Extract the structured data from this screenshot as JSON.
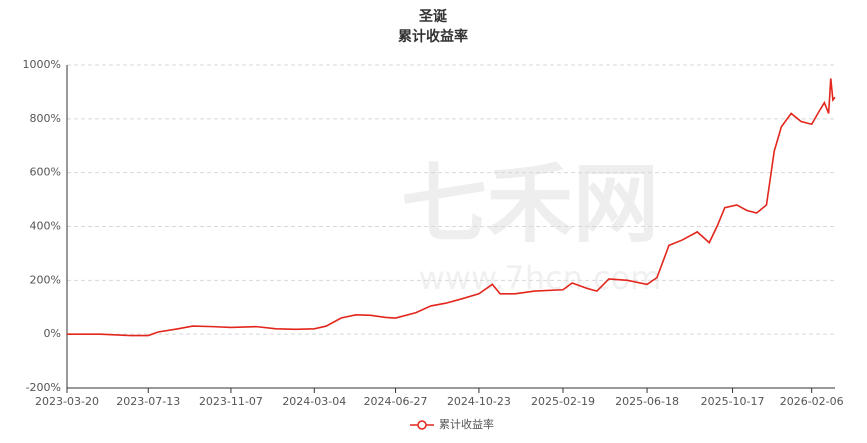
{
  "chart_data": {
    "type": "line",
    "title": "圣诞",
    "subtitle": "累计收益率",
    "watermark": {
      "text": "七禾网",
      "url": "www.7hcn.com"
    },
    "x": [
      "2023-03-20",
      "2023-05-06",
      "2023-06-17",
      "2023-07-13",
      "2023-07-27",
      "2023-08-24",
      "2023-09-14",
      "2023-10-12",
      "2023-11-07",
      "2023-12-13",
      "2024-01-10",
      "2024-02-07",
      "2024-03-04",
      "2024-03-21",
      "2024-04-11",
      "2024-05-02",
      "2024-05-23",
      "2024-06-13",
      "2024-06-27",
      "2024-07-26",
      "2024-08-16",
      "2024-09-06",
      "2024-09-27",
      "2024-10-23",
      "2024-11-11",
      "2024-11-22",
      "2024-12-13",
      "2025-01-10",
      "2025-02-19",
      "2025-03-04",
      "2025-03-25",
      "2025-04-08",
      "2025-04-25",
      "2025-05-21",
      "2025-06-18",
      "2025-07-02",
      "2025-07-19",
      "2025-08-07",
      "2025-08-28",
      "2025-09-14",
      "2025-09-25",
      "2025-10-06",
      "2025-10-23",
      "2025-11-06",
      "2025-11-20",
      "2025-12-04",
      "2025-12-15",
      "2025-12-25",
      "2026-01-08",
      "2026-01-22",
      "2026-02-06",
      "2026-02-17",
      "2026-02-24",
      "2026-03-02",
      "2026-03-05",
      "2026-03-08",
      "2026-03-11"
    ],
    "series": [
      {
        "name": "累计收益率",
        "color": "#e3261c",
        "values": [
          0,
          0,
          -5,
          -5,
          8,
          20,
          30,
          28,
          25,
          28,
          20,
          18,
          20,
          30,
          60,
          72,
          70,
          62,
          60,
          80,
          105,
          115,
          130,
          150,
          185,
          150,
          150,
          160,
          165,
          190,
          170,
          160,
          205,
          200,
          185,
          210,
          330,
          350,
          380,
          340,
          400,
          470,
          480,
          460,
          450,
          480,
          680,
          770,
          820,
          790,
          780,
          830,
          860,
          820,
          950,
          870,
          880
        ]
      }
    ],
    "xlim": [
      "2023-03-20",
      "2026-03-11"
    ],
    "xticks": [
      "2023-03-20",
      "2023-07-13",
      "2023-11-07",
      "2024-03-04",
      "2024-06-27",
      "2024-10-23",
      "2025-02-19",
      "2025-06-18",
      "2025-10-17",
      "2026-02-06"
    ],
    "ylim": [
      -200,
      1000
    ],
    "yticks": [
      {
        "value": -200,
        "label": "-200%"
      },
      {
        "value": 0,
        "label": "0%"
      },
      {
        "value": 200,
        "label": "200%"
      },
      {
        "value": 400,
        "label": "400%"
      },
      {
        "value": 600,
        "label": "600%"
      },
      {
        "value": 800,
        "label": "800%"
      },
      {
        "value": 1000,
        "label": "1000%"
      }
    ],
    "grid": true
  }
}
